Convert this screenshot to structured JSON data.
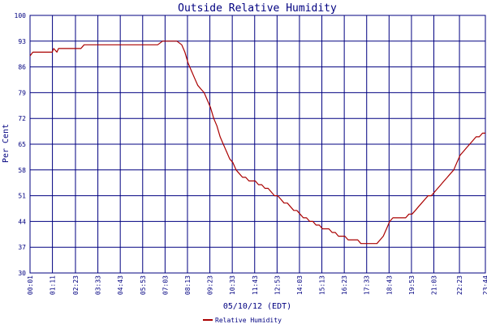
{
  "chart_data": {
    "type": "line",
    "title": "Outside Relative Humidity",
    "xlabel": "05/10/12 (EDT)",
    "ylabel": "Per Cent",
    "ylim": [
      30,
      100
    ],
    "y_ticks": [
      "30",
      "37",
      "44",
      "51",
      "58",
      "65",
      "72",
      "79",
      "86",
      "93",
      "100"
    ],
    "x_ticks": [
      "00:01",
      "01:11",
      "02:23",
      "03:33",
      "04:43",
      "05:53",
      "07:03",
      "08:13",
      "09:23",
      "10:33",
      "11:43",
      "12:53",
      "14:03",
      "15:13",
      "16:23",
      "17:33",
      "18:43",
      "19:53",
      "21:03",
      "22:23",
      "23:44"
    ],
    "xlim": [
      "00:01",
      "23:44"
    ],
    "grid": true,
    "legend_position": "bottom-center",
    "series": [
      {
        "name": "Relative Humidity",
        "color": "#aa0000",
        "x": [
          "00:01",
          "00:10",
          "00:30",
          "00:50",
          "01:10",
          "01:15",
          "01:25",
          "01:30",
          "02:00",
          "02:40",
          "02:50",
          "03:20",
          "04:00",
          "05:00",
          "06:00",
          "06:40",
          "06:55",
          "07:00",
          "07:20",
          "07:40",
          "07:55",
          "08:05",
          "08:15",
          "08:25",
          "08:35",
          "08:45",
          "08:55",
          "09:05",
          "09:15",
          "09:25",
          "09:35",
          "09:45",
          "09:55",
          "10:05",
          "10:15",
          "10:25",
          "10:35",
          "10:45",
          "10:55",
          "11:05",
          "11:15",
          "11:25",
          "11:35",
          "11:45",
          "11:55",
          "12:05",
          "12:15",
          "12:25",
          "12:35",
          "12:45",
          "12:55",
          "13:05",
          "13:15",
          "13:25",
          "13:35",
          "13:45",
          "13:55",
          "14:05",
          "14:15",
          "14:25",
          "14:35",
          "14:45",
          "14:55",
          "15:05",
          "15:15",
          "15:25",
          "15:35",
          "15:45",
          "15:55",
          "16:05",
          "16:15",
          "16:25",
          "16:35",
          "16:45",
          "16:55",
          "17:05",
          "17:15",
          "17:25",
          "17:35",
          "17:45",
          "17:55",
          "18:05",
          "18:15",
          "18:25",
          "18:35",
          "18:45",
          "18:55",
          "19:05",
          "19:15",
          "19:25",
          "19:35",
          "19:45",
          "19:55",
          "20:05",
          "20:15",
          "20:25",
          "20:35",
          "20:45",
          "20:55",
          "21:05",
          "21:15",
          "21:25",
          "21:35",
          "21:45",
          "21:55",
          "22:05",
          "22:15",
          "22:25",
          "22:35",
          "22:45",
          "22:55",
          "23:05",
          "23:15",
          "23:25",
          "23:35",
          "23:44"
        ],
        "values": [
          89,
          90,
          90,
          90,
          90,
          91,
          90,
          91,
          91,
          91,
          92,
          92,
          92,
          92,
          92,
          92,
          93,
          93,
          93,
          93,
          92,
          90,
          87,
          85,
          83,
          81,
          80,
          79,
          77,
          75,
          72,
          70,
          67,
          65,
          63,
          61,
          60,
          58,
          57,
          56,
          56,
          55,
          55,
          55,
          54,
          54,
          53,
          53,
          52,
          51,
          51,
          50,
          49,
          49,
          48,
          47,
          47,
          46,
          45,
          45,
          44,
          44,
          43,
          43,
          42,
          42,
          42,
          41,
          41,
          40,
          40,
          40,
          39,
          39,
          39,
          39,
          38,
          38,
          38,
          38,
          38,
          38,
          39,
          40,
          42,
          44,
          45,
          45,
          45,
          45,
          45,
          46,
          46,
          47,
          48,
          49,
          50,
          51,
          51,
          52,
          53,
          54,
          55,
          56,
          57,
          58,
          60,
          62,
          63,
          64,
          65,
          66,
          67,
          67,
          68,
          68
        ]
      }
    ]
  }
}
